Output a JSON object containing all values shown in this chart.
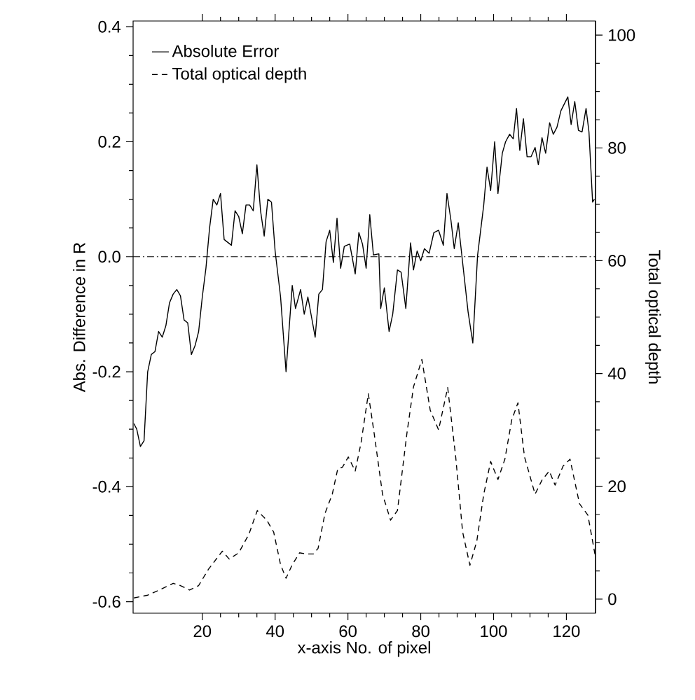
{
  "chart_data": {
    "type": "line",
    "xlabel": "x-axis No. of pixel",
    "ylabel": "Abs. Difference in R",
    "y2label": "Total optical depth",
    "xlim": [
      1,
      128
    ],
    "ylim": [
      -0.62,
      0.41
    ],
    "y2lim": [
      -2.5,
      102.5
    ],
    "xticks": [
      20,
      40,
      60,
      80,
      100,
      120
    ],
    "yticks": [
      -0.6,
      -0.4,
      -0.2,
      {
        "value": 0,
        "label": "0.0"
      },
      0.2,
      0.4
    ],
    "y2ticks": [
      0,
      20,
      40,
      60,
      80,
      100
    ],
    "legend": "top left",
    "grid": false,
    "marker": "none",
    "ref_lines": [
      {
        "axis": "y",
        "value": 0,
        "line_style": "dashdot",
        "color": "#000000"
      }
    ],
    "series": [
      {
        "name": "Absolute Error",
        "color": "#000000",
        "line_style": "solid",
        "x": [
          1.2,
          2,
          3,
          4,
          5,
          6,
          7,
          8,
          9,
          10,
          11,
          12,
          13,
          14,
          15,
          16,
          17,
          18,
          19,
          20,
          21,
          22,
          23,
          24,
          25,
          26,
          28,
          29,
          30,
          31,
          32,
          33,
          34,
          35,
          36,
          37,
          38,
          39,
          40,
          41.5,
          43,
          44.7,
          45.6,
          47,
          48,
          49,
          51,
          52,
          53,
          54,
          55,
          56,
          57,
          58,
          59,
          60.5,
          62,
          63,
          64,
          65,
          66,
          67,
          68.5,
          69,
          70,
          71.3,
          72.3,
          73.6,
          74.6,
          75.9,
          77.2,
          78,
          79,
          80,
          81,
          82.3,
          83.6,
          84.9,
          86.2,
          87.2,
          88.3,
          89.2,
          90.3,
          91.5,
          93,
          94.3,
          95.6,
          97.3,
          98.2,
          99.2,
          100.3,
          101.2,
          102.4,
          103.3,
          104.4,
          105.4,
          106.3,
          107.2,
          108.2,
          109.2,
          110.3,
          111.4,
          112.3,
          113.3,
          114.3,
          115.4,
          116.4,
          117.4,
          118.5,
          120.4,
          121.3,
          122.3,
          123.3,
          124.3,
          125.4,
          126.2,
          127.2,
          127.7
        ],
        "values": [
          -0.29,
          -0.3,
          -0.33,
          -0.32,
          -0.2,
          -0.17,
          -0.165,
          -0.13,
          -0.14,
          -0.12,
          -0.08,
          -0.065,
          -0.057,
          -0.068,
          -0.11,
          -0.115,
          -0.17,
          -0.155,
          -0.13,
          -0.07,
          -0.02,
          0.05,
          0.1,
          0.09,
          0.11,
          0.03,
          0.02,
          0.08,
          0.07,
          0.04,
          0.09,
          0.09,
          0.08,
          0.16,
          0.08,
          0.036,
          0.1,
          0.095,
          0.01,
          -0.07,
          -0.2,
          -0.05,
          -0.09,
          -0.057,
          -0.1,
          -0.07,
          -0.14,
          -0.065,
          -0.057,
          0.026,
          0.046,
          -0.01,
          0.067,
          -0.02,
          0.018,
          0.022,
          -0.03,
          0.042,
          0.022,
          -0.02,
          0.073,
          0.003,
          0.005,
          -0.09,
          -0.054,
          -0.13,
          -0.1,
          -0.023,
          -0.027,
          -0.09,
          0.024,
          -0.023,
          0.01,
          -0.007,
          0.014,
          0.006,
          0.042,
          0.046,
          0.02,
          0.11,
          0.063,
          0.014,
          0.059,
          -0.01,
          -0.096,
          -0.15,
          0.002,
          0.09,
          0.156,
          0.115,
          0.2,
          0.11,
          0.18,
          0.2,
          0.213,
          0.205,
          0.258,
          0.185,
          0.24,
          0.174,
          0.174,
          0.19,
          0.16,
          0.207,
          0.18,
          0.233,
          0.213,
          0.225,
          0.254,
          0.278,
          0.23,
          0.27,
          0.22,
          0.217,
          0.258,
          0.217,
          0.095,
          0.1
        ]
      },
      {
        "name": "Total optical depth",
        "color": "#000000",
        "line_style": "dashed",
        "axis": "y2",
        "x": [
          1.2,
          5,
          8.2,
          12,
          14,
          16.5,
          19,
          21.7,
          24.2,
          25.5,
          27.4,
          30,
          32.8,
          35.1,
          37.7,
          39.6,
          41.5,
          43,
          44.7,
          46.7,
          48.6,
          50.5,
          51.8,
          53.7,
          55.7,
          57.2,
          58.5,
          60.1,
          62,
          63.6,
          65.6,
          67.2,
          69.5,
          71.7,
          73.6,
          76.2,
          78,
          80.3,
          82.6,
          84.9,
          87.4,
          89.6,
          91.5,
          93.5,
          95.4,
          97.3,
          99.2,
          101.2,
          103.1,
          105,
          106.7,
          108.5,
          111.4,
          113.3,
          115.3,
          116.9,
          119.1,
          121,
          123.6,
          125.9,
          128
        ],
        "values": [
          0.2,
          0.7,
          1.6,
          2.8,
          2.4,
          1.6,
          2.4,
          5.3,
          7.4,
          8.5,
          7.1,
          8.2,
          11.5,
          15.7,
          14,
          11.9,
          6.1,
          3.7,
          6.1,
          8.2,
          8,
          8,
          9,
          15.2,
          18.6,
          23.1,
          23.4,
          25.2,
          22.7,
          27.7,
          36.4,
          29.4,
          18.6,
          14,
          15.7,
          29.4,
          37.6,
          42.5,
          33.5,
          30,
          37.5,
          25.2,
          11.9,
          6,
          10.3,
          18.6,
          24.4,
          21.2,
          24.8,
          31.8,
          34.8,
          25.2,
          18.6,
          21.1,
          22.7,
          20.2,
          23.6,
          24.8,
          16.9,
          14.9,
          7.4
        ]
      }
    ]
  }
}
